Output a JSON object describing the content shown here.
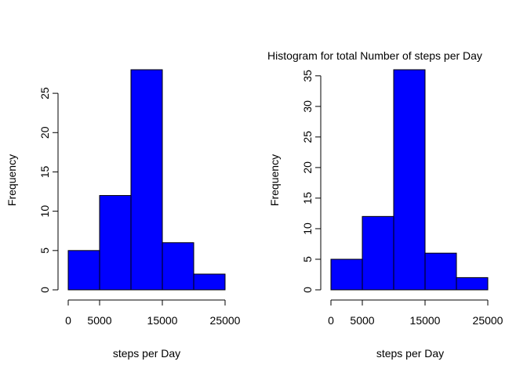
{
  "chart_data": [
    {
      "type": "bar",
      "title": "",
      "xlabel": "steps per Day",
      "ylabel": "Frequency",
      "color": "#0000ff",
      "bins": [
        [
          0,
          5000
        ],
        [
          5000,
          10000
        ],
        [
          10000,
          15000
        ],
        [
          15000,
          20000
        ],
        [
          20000,
          25000
        ]
      ],
      "values": [
        5,
        12,
        28,
        6,
        2
      ],
      "xlim": [
        0,
        25000
      ],
      "ylim": [
        0,
        28
      ],
      "xticks": [
        0,
        5000,
        15000,
        25000
      ],
      "xtick_labels": [
        "0",
        "5000",
        "15000",
        "25000"
      ],
      "yticks": [
        0,
        5,
        10,
        15,
        20,
        25
      ],
      "ytick_labels": [
        "0",
        "5",
        "10",
        "15",
        "20",
        "25"
      ],
      "grid": false,
      "legend": "none"
    },
    {
      "type": "bar",
      "title": "Histogram for total Number of steps per Day",
      "xlabel": "steps per Day",
      "ylabel": "Frequency",
      "color": "#0000ff",
      "bins": [
        [
          0,
          5000
        ],
        [
          5000,
          10000
        ],
        [
          10000,
          15000
        ],
        [
          15000,
          20000
        ],
        [
          20000,
          25000
        ]
      ],
      "values": [
        5,
        12,
        36,
        6,
        2
      ],
      "xlim": [
        0,
        25000
      ],
      "ylim": [
        0,
        36
      ],
      "xticks": [
        0,
        5000,
        15000,
        25000
      ],
      "xtick_labels": [
        "0",
        "5000",
        "15000",
        "25000"
      ],
      "yticks": [
        0,
        5,
        10,
        15,
        20,
        25,
        30,
        35
      ],
      "ytick_labels": [
        "0",
        "5",
        "10",
        "15",
        "20",
        "25",
        "30",
        "35"
      ],
      "grid": false,
      "legend": "none"
    }
  ]
}
